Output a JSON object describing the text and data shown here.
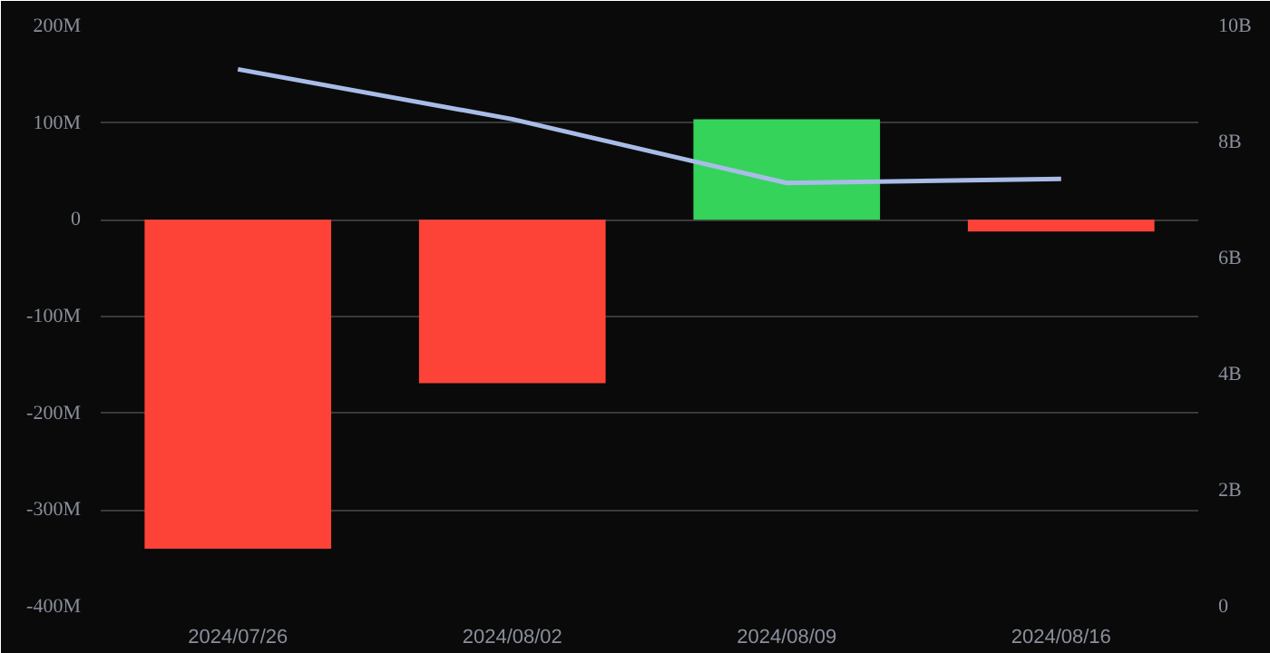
{
  "chart_data": {
    "type": "bar",
    "categories": [
      "2024/07/26",
      "2024/08/02",
      "2024/08/09",
      "2024/08/16"
    ],
    "series": [
      {
        "colors": [
          "#fd4338",
          "#fd4338",
          "#35d35a",
          "#fd4338"
        ],
        "values": [
          -340000000,
          -169000000,
          104000000,
          -12000000
        ]
      },
      {
        "type": "line",
        "axis": "y2",
        "color": "#a9bce8",
        "values": [
          9260000000,
          8400000000,
          7300000000,
          7370000000
        ]
      }
    ],
    "ylim": [
      -400000000,
      200000000
    ],
    "yticks": [
      {
        "value": -400000000,
        "label": "-400M"
      },
      {
        "value": -300000000,
        "label": "-300M"
      },
      {
        "value": -200000000,
        "label": "-200M"
      },
      {
        "value": -100000000,
        "label": "-100M"
      },
      0,
      {
        "value": 100000000,
        "label": "100M"
      },
      {
        "value": 200000000,
        "label": "200M"
      }
    ],
    "y2lim": [
      0,
      10000000000
    ],
    "y2ticks": [
      0,
      {
        "value": 2000000000,
        "label": "2B"
      },
      {
        "value": 4000000000,
        "label": "4B"
      },
      {
        "value": 6000000000,
        "label": "6B"
      },
      {
        "value": 8000000000,
        "label": "8B"
      },
      {
        "value": 10000000000,
        "label": "10B"
      }
    ],
    "grid": "y"
  }
}
